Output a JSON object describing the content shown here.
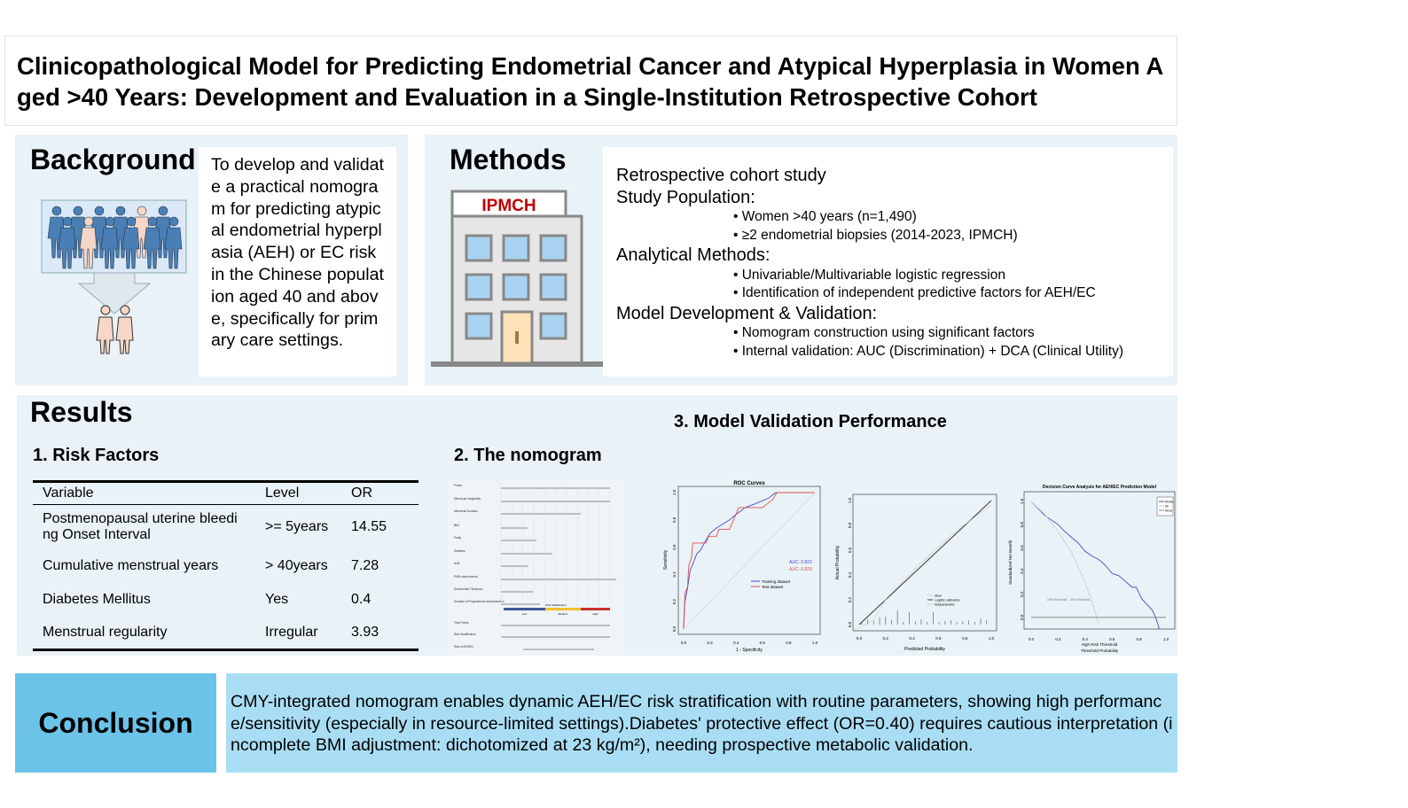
{
  "title": "Clinicopathological Model for Predicting Endometrial Cancer and Atypical Hyperplasia in Women Aged >40 Years: Development and Evaluation in a Single-Institution Retrospective Cohort",
  "background": {
    "heading": "Background",
    "text": "To develop and validate a practical nomogram for predicting atypical endometrial hyperplasia (AEH) or EC risk in the Chinese population aged 40 and above, specifically for primary care settings."
  },
  "methods": {
    "heading": "Methods",
    "building_label": "IPMCH",
    "design": "Retrospective cohort study",
    "sections": [
      {
        "title": "Study Population:",
        "items": [
          "• Women >40 years (n=1,490)",
          "• ≥2 endometrial biopsies (2014-2023, IPMCH)"
        ]
      },
      {
        "title": "Analytical Methods:",
        "items": [
          "• Univariable/Multivariable logistic regression",
          "• Identification of independent predictive factors for AEH/EC"
        ]
      },
      {
        "title": "Model Development & Validation:",
        "items": [
          "• Nomogram construction using significant factors",
          "• Internal validation: AUC (Discrimination) + DCA (Clinical Utility)"
        ]
      }
    ]
  },
  "results": {
    "heading": "Results",
    "risk_factors_title": "1. Risk Factors",
    "table": {
      "headers": [
        "Variable",
        "Level",
        "OR"
      ],
      "rows": [
        [
          "Postmenopausal uterine bleeding Onset Interval",
          ">= 5years",
          "14.55"
        ],
        [
          "Cumulative menstrual years",
          "> 40years",
          "7.28"
        ],
        [
          "Diabetes Mellitus",
          "Yes",
          "0.4"
        ],
        [
          "Menstrual regularity",
          "Irregular",
          "3.93"
        ]
      ]
    },
    "nomogram_title": "2. The nomogram",
    "validation_title": "3. Model Validation Performance",
    "nomogram": {
      "rows": [
        "Points",
        "Menstrual Irregularity",
        "Menstrual Duration",
        "BMI",
        "Parity",
        "Diabetes",
        "AUB",
        "PMB onset interval",
        "Endometrial Thickness",
        "Duration of Progesterone Administration",
        "Total Points",
        "Risk Stratification",
        "Risk of AEH/EC"
      ],
      "strat_label": "Risk Stratification",
      "strat_levels": [
        "Low",
        "Medium",
        "High"
      ],
      "strat_colors": [
        "#3b5998",
        "#f2c12e",
        "#c9302c"
      ]
    },
    "roc": {
      "title": "ROC Curves",
      "xlabel": "1 - Specificity",
      "ylabel": "Sensitivity",
      "auc_train": "AUC: 0.822",
      "auc_test": "AUC: 0.829",
      "legend": [
        "Training dataset",
        "Test dataset"
      ],
      "ticks": [
        "0.0",
        "0.2",
        "0.4",
        "0.6",
        "0.8",
        "1.0"
      ]
    },
    "calibration": {
      "xlabel": "Predicted Probability",
      "ylabel": "Actual Probability",
      "legend": [
        "Ideal",
        "Logistic calibration",
        "Nonparametric"
      ],
      "ticks": [
        "0.0",
        "0.2",
        "0.4",
        "0.6",
        "0.8",
        "1.0"
      ]
    },
    "dca": {
      "title": "Decision Curve Analysis for AEH/EC Prediction Model",
      "xlabel": "High Risk Threshold",
      "xlabel2": "Threshold Probability",
      "ylabel": "Standardized Net Benefit",
      "legend": [
        "Model",
        "All",
        "None"
      ],
      "annot": [
        "20% threshold",
        "40% threshold"
      ],
      "ticks": [
        "0.0",
        "0.2",
        "0.4",
        "0.6",
        "0.8",
        "1.0"
      ]
    }
  },
  "conclusion": {
    "heading": "Conclusion",
    "text": "CMY-integrated nomogram enables dynamic AEH/EC risk stratification with routine parameters, showing high performance/sensitivity (especially in resource-limited settings).Diabetes' protective effect (OR=0.40) requires cautious interpretation (incomplete BMI adjustment: dichotomized at 23 kg/m²), needing prospective metabolic validation."
  },
  "chart_data": [
    {
      "type": "line",
      "title": "ROC Curves",
      "xlabel": "1 - Specificity",
      "ylabel": "Sensitivity",
      "xlim": [
        0,
        1
      ],
      "ylim": [
        0,
        1
      ],
      "series": [
        {
          "name": "Training dataset",
          "color": "#4b4bc8",
          "x": [
            0,
            0.01,
            0.03,
            0.05,
            0.08,
            0.1,
            0.13,
            0.17,
            0.2,
            0.25,
            0.3,
            0.35,
            0.4,
            0.47,
            0.55,
            0.65,
            0.7,
            1.0
          ],
          "y": [
            0,
            0.2,
            0.3,
            0.43,
            0.5,
            0.55,
            0.58,
            0.65,
            0.7,
            0.74,
            0.77,
            0.8,
            0.84,
            0.89,
            0.92,
            0.96,
            1.0,
            1.0
          ]
        },
        {
          "name": "Test dataset",
          "color": "#e05050",
          "x": [
            0,
            0.01,
            0.03,
            0.04,
            0.06,
            0.07,
            0.17,
            0.19,
            0.25,
            0.27,
            0.35,
            0.42,
            0.6,
            0.68,
            0.71,
            1.0
          ],
          "y": [
            0,
            0.26,
            0.31,
            0.47,
            0.52,
            0.63,
            0.63,
            0.68,
            0.68,
            0.73,
            0.73,
            0.89,
            0.89,
            0.95,
            1.0,
            1.0
          ]
        }
      ],
      "annotations": [
        "AUC: 0.822",
        "AUC: 0.829"
      ]
    },
    {
      "type": "line",
      "title": "Decision Curve Analysis for AEH/EC Prediction Model",
      "xlabel": "High Risk Threshold",
      "ylabel": "Standardized Net Benefit",
      "xlim": [
        0,
        1
      ],
      "ylim": [
        -0.1,
        1
      ],
      "series": [
        {
          "name": "Model",
          "color": "#4b4bc8",
          "x": [
            0,
            0.1,
            0.2,
            0.25,
            0.35,
            0.4,
            0.45,
            0.5,
            0.55,
            0.6,
            0.65,
            0.7,
            0.75,
            0.78,
            0.82,
            0.87,
            0.9,
            0.93,
            0.95
          ],
          "y": [
            1.0,
            0.88,
            0.8,
            0.74,
            0.64,
            0.57,
            0.53,
            0.5,
            0.45,
            0.38,
            0.36,
            0.31,
            0.26,
            0.26,
            0.16,
            0.1,
            0.06,
            -0.02,
            -0.1
          ]
        },
        {
          "name": "All",
          "color": "#cfcfcf",
          "x": [
            0,
            0.1,
            0.2,
            0.3,
            0.4,
            0.45,
            0.5
          ],
          "y": [
            1.0,
            0.89,
            0.74,
            0.56,
            0.3,
            0.14,
            -0.05
          ]
        },
        {
          "name": "None",
          "color": "#888888",
          "x": [
            0,
            1
          ],
          "y": [
            0,
            0
          ]
        }
      ]
    }
  ]
}
